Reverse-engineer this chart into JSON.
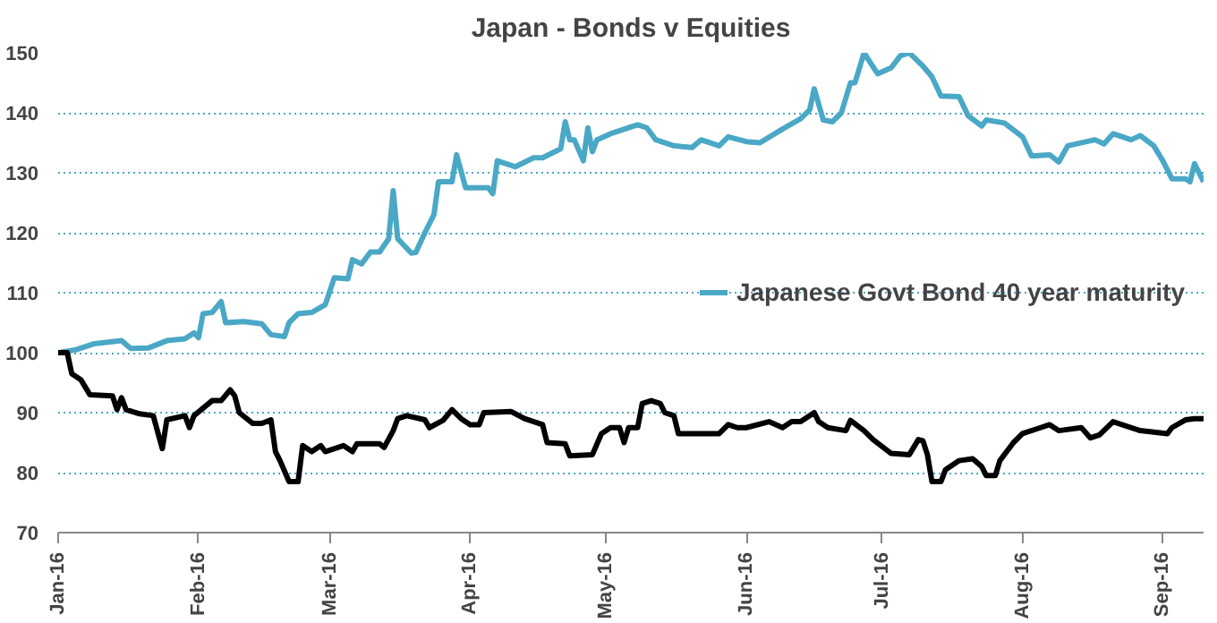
{
  "chart_data": {
    "type": "line",
    "title": "Japan - Bonds v Equities",
    "series": [
      {
        "name": "Japanese Govt Bond 40 year maturity",
        "color": "#4aa8c6",
        "x": [
          "2016-01-01",
          "2016-01-05",
          "2016-01-09",
          "2016-01-15",
          "2016-01-17",
          "2016-01-21",
          "2016-01-25",
          "2016-01-29",
          "2016-01-31",
          "2016-02-01",
          "2016-02-02",
          "2016-02-04",
          "2016-02-06",
          "2016-02-07",
          "2016-02-11",
          "2016-02-15",
          "2016-02-17",
          "2016-02-20",
          "2016-02-21",
          "2016-02-23",
          "2016-02-26",
          "2016-02-29",
          "2016-03-02",
          "2016-03-05",
          "2016-03-06",
          "2016-03-08",
          "2016-03-10",
          "2016-03-12",
          "2016-03-14",
          "2016-03-15",
          "2016-03-16",
          "2016-03-19",
          "2016-03-20",
          "2016-03-22",
          "2016-03-24",
          "2016-03-25",
          "2016-03-28",
          "2016-03-29",
          "2016-03-31",
          "2016-04-05",
          "2016-04-06",
          "2016-04-07",
          "2016-04-11",
          "2016-04-15",
          "2016-04-17",
          "2016-04-21",
          "2016-04-22",
          "2016-04-23",
          "2016-04-24",
          "2016-04-26",
          "2016-04-27",
          "2016-04-28",
          "2016-04-29",
          "2016-05-02",
          "2016-05-08",
          "2016-05-10",
          "2016-05-12",
          "2016-05-16",
          "2016-05-20",
          "2016-05-22",
          "2016-05-26",
          "2016-05-28",
          "2016-06-01",
          "2016-06-04",
          "2016-06-09",
          "2016-06-13",
          "2016-06-15",
          "2016-06-16",
          "2016-06-18",
          "2016-06-20",
          "2016-06-22",
          "2016-06-24",
          "2016-06-25",
          "2016-06-27",
          "2016-06-30",
          "2016-07-03",
          "2016-07-05",
          "2016-07-07",
          "2016-07-10",
          "2016-07-12",
          "2016-07-14",
          "2016-07-18",
          "2016-07-20",
          "2016-07-23",
          "2016-07-24",
          "2016-07-28",
          "2016-08-01",
          "2016-08-03",
          "2016-08-07",
          "2016-08-09",
          "2016-08-11",
          "2016-08-17",
          "2016-08-19",
          "2016-08-21",
          "2016-08-25",
          "2016-08-27",
          "2016-08-30",
          "2016-09-01",
          "2016-09-03",
          "2016-09-06",
          "2016-09-07",
          "2016-09-08",
          "2016-09-10"
        ],
        "values": [
          100,
          100.5,
          101.5,
          102,
          100.7,
          100.8,
          102,
          102.3,
          103.3,
          102.5,
          106.5,
          106.7,
          108.5,
          105,
          105.2,
          104.8,
          103,
          102.7,
          105,
          106.5,
          106.7,
          108,
          112.5,
          112.3,
          115.5,
          114.8,
          116.8,
          116.8,
          119,
          127,
          119,
          116.6,
          116.7,
          120,
          123,
          128.5,
          128.5,
          133,
          127.5,
          127.5,
          126.5,
          132,
          131,
          132.5,
          132.5,
          134,
          138.5,
          135.5,
          135.5,
          132,
          137.5,
          133.5,
          135.5,
          136.5,
          138,
          137.5,
          135.5,
          134.5,
          134.2,
          135.5,
          134.5,
          136,
          135.2,
          135,
          137.3,
          139,
          140.5,
          144,
          138.8,
          138.5,
          140,
          145,
          145,
          150,
          146.5,
          147.5,
          149.5,
          150,
          147.8,
          146,
          142.8,
          142.7,
          139.5,
          137.8,
          138.8,
          138.3,
          136,
          132.8,
          133,
          131.8,
          134.5,
          135.5,
          134.8,
          136.5,
          135.5,
          136.2,
          134.5,
          132,
          129,
          129,
          128.5,
          131.5,
          128.5
        ]
      },
      {
        "color": "#000000",
        "x": [
          "2016-01-01",
          "2016-01-03",
          "2016-01-04",
          "2016-01-06",
          "2016-01-08",
          "2016-01-13",
          "2016-01-14",
          "2016-01-15",
          "2016-01-16",
          "2016-01-19",
          "2016-01-22",
          "2016-01-24",
          "2016-01-25",
          "2016-01-29",
          "2016-01-30",
          "2016-01-31",
          "2016-02-04",
          "2016-02-06",
          "2016-02-08",
          "2016-02-09",
          "2016-02-10",
          "2016-02-13",
          "2016-02-15",
          "2016-02-17",
          "2016-02-18",
          "2016-02-19",
          "2016-02-21",
          "2016-02-23",
          "2016-02-24",
          "2016-02-26",
          "2016-02-28",
          "2016-02-29",
          "2016-03-04",
          "2016-03-06",
          "2016-03-07",
          "2016-03-12",
          "2016-03-13",
          "2016-03-15",
          "2016-03-16",
          "2016-03-18",
          "2016-03-22",
          "2016-03-23",
          "2016-03-26",
          "2016-03-28",
          "2016-03-30",
          "2016-04-01",
          "2016-04-03",
          "2016-04-04",
          "2016-04-10",
          "2016-04-13",
          "2016-04-17",
          "2016-04-18",
          "2016-04-22",
          "2016-04-23",
          "2016-04-28",
          "2016-04-30",
          "2016-05-02",
          "2016-05-04",
          "2016-05-05",
          "2016-05-06",
          "2016-05-08",
          "2016-05-09",
          "2016-05-11",
          "2016-05-13",
          "2016-05-14",
          "2016-05-16",
          "2016-05-17",
          "2016-05-26",
          "2016-05-28",
          "2016-05-30",
          "2016-06-01",
          "2016-06-06",
          "2016-06-09",
          "2016-06-11",
          "2016-06-13",
          "2016-06-16",
          "2016-06-17",
          "2016-06-19",
          "2016-06-23",
          "2016-06-24",
          "2016-06-27",
          "2016-06-29",
          "2016-07-03",
          "2016-07-07",
          "2016-07-09",
          "2016-07-10",
          "2016-07-11",
          "2016-07-12",
          "2016-07-14",
          "2016-07-15",
          "2016-07-18",
          "2016-07-21",
          "2016-07-23",
          "2016-07-24",
          "2016-07-26",
          "2016-07-27",
          "2016-07-30",
          "2016-08-01",
          "2016-08-05",
          "2016-08-07",
          "2016-08-09",
          "2016-08-14",
          "2016-08-16",
          "2016-08-18",
          "2016-08-21",
          "2016-08-27",
          "2016-09-02",
          "2016-09-03",
          "2016-09-06",
          "2016-09-08",
          "2016-09-10"
        ],
        "values": [
          100,
          100,
          96.5,
          95.5,
          93,
          92.8,
          90.5,
          92.5,
          90.5,
          89.8,
          89.5,
          84,
          88.8,
          89.5,
          87.5,
          89.5,
          92,
          92,
          93.8,
          92.8,
          90,
          88.2,
          88.2,
          88.8,
          83.5,
          82,
          78.5,
          78.5,
          84.5,
          83.5,
          84.5,
          83.5,
          84.5,
          83.5,
          84.8,
          84.8,
          84.2,
          87,
          89,
          89.5,
          88.8,
          87.5,
          88.7,
          90.5,
          89,
          88,
          88,
          90,
          90.2,
          89,
          88,
          85,
          84.8,
          82.8,
          83,
          86.5,
          87.5,
          87.5,
          85,
          87.5,
          87.5,
          91.5,
          92,
          91.5,
          90,
          89.5,
          86.5,
          86.5,
          88,
          87.5,
          87.5,
          88.5,
          87.5,
          88.5,
          88.5,
          90,
          88.5,
          87.5,
          87,
          88.7,
          87,
          85.5,
          83.2,
          83,
          85.5,
          85.3,
          83,
          78.5,
          78.5,
          80.5,
          82,
          82.3,
          81,
          79.5,
          79.5,
          82,
          85,
          86.5,
          87.5,
          88,
          87,
          87.5,
          85.8,
          86.3,
          88.5,
          87,
          86.5,
          87.5,
          88.8,
          89,
          89
        ]
      }
    ],
    "xlim": [
      "2016-01-01",
      "2016-09-10"
    ],
    "xticks": [
      {
        "value": "2016-01-01",
        "label": "Jan-16"
      },
      {
        "value": "2016-02-01",
        "label": "Feb-16"
      },
      {
        "value": "2016-03-01",
        "label": "Mar-16"
      },
      {
        "value": "2016-04-01",
        "label": "Apr-16"
      },
      {
        "value": "2016-05-01",
        "label": "May-16"
      },
      {
        "value": "2016-06-01",
        "label": "Jun-16"
      },
      {
        "value": "2016-07-01",
        "label": "Jul-16"
      },
      {
        "value": "2016-08-01",
        "label": "Aug-16"
      },
      {
        "value": "2016-09-01",
        "label": "Sep-16"
      }
    ],
    "ylim": [
      70,
      150
    ],
    "yticks": [
      70,
      80,
      90,
      100,
      110,
      120,
      130,
      140,
      150
    ],
    "grid": "y",
    "legend": "right",
    "line_style": "solid"
  }
}
